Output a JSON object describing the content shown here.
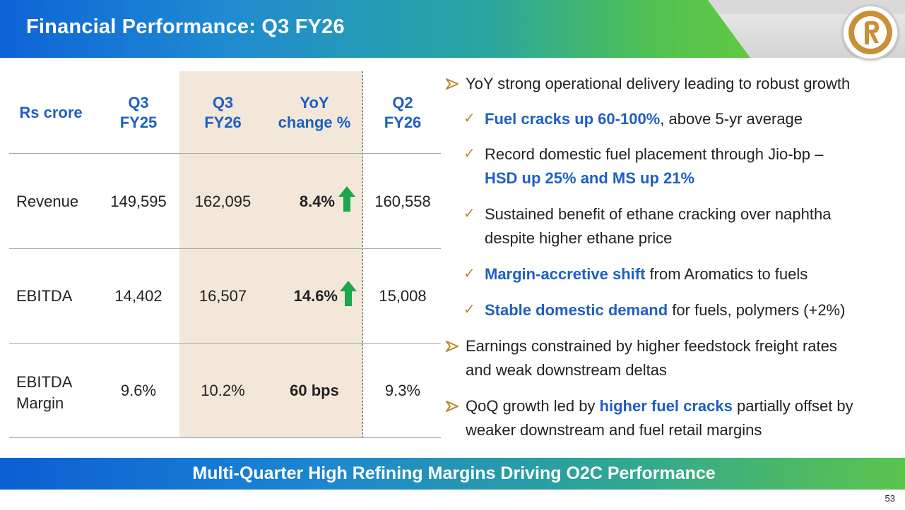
{
  "header": {
    "title": "Financial Performance: Q3 FY26"
  },
  "colors": {
    "accent_blue": "#1f5fc4",
    "highlight_column": "#f2e7d9",
    "up_arrow": "#1aa84a",
    "bullet_marker": "#b7892e"
  },
  "table": {
    "unit_label": "Rs crore",
    "columns": [
      {
        "line1": "Q3",
        "line2": "FY25"
      },
      {
        "line1": "Q3",
        "line2": "FY26"
      },
      {
        "line1": "YoY",
        "line2": "change %"
      },
      {
        "line1": "Q2",
        "line2": "FY26"
      }
    ],
    "rows": [
      {
        "label": "Revenue",
        "q3fy25": "149,595",
        "q3fy26": "162,095",
        "yoy": "8.4%",
        "yoy_icon": "up-arrow-icon",
        "q2fy26": "160,558"
      },
      {
        "label": "EBITDA",
        "q3fy25": "14,402",
        "q3fy26": "16,507",
        "yoy": "14.6%",
        "yoy_icon": "up-arrow-icon",
        "q2fy26": "15,008"
      },
      {
        "label_line1": "EBITDA",
        "label_line2": "Margin",
        "q3fy25": "9.6%",
        "q3fy26": "10.2%",
        "yoy": "60 bps",
        "q2fy26": "9.3%"
      }
    ]
  },
  "bullets": {
    "b1": {
      "text": "YoY strong operational delivery leading to robust growth"
    },
    "s1": {
      "bold": "Fuel cracks up 60-100%",
      "rest": ", above 5-yr average"
    },
    "s2": {
      "line1": "Record domestic fuel placement through Jio-bp –",
      "bold": "HSD up 25% and MS up 21%"
    },
    "s3": {
      "line1": "Sustained benefit of ethane cracking over naphtha",
      "line2": "despite higher ethane price"
    },
    "s4": {
      "bold": "Margin-accretive shift",
      "rest": " from Aromatics to fuels"
    },
    "s5": {
      "bold": "Stable domestic demand",
      "rest": " for fuels, polymers (+2%)"
    },
    "b2": {
      "line1": "Earnings constrained by higher feedstock freight rates",
      "line2": "and weak downstream deltas"
    },
    "b3": {
      "pre": "QoQ growth led by ",
      "bold": "higher fuel cracks",
      "post": " partially offset by",
      "line2": "weaker downstream and fuel retail margins"
    },
    "check_icon": "check-icon",
    "arrow_icon": "arrow-bullet-icon"
  },
  "footer": {
    "banner": "Multi-Quarter High Refining Margins Driving O2C Performance",
    "page_number": "53"
  }
}
